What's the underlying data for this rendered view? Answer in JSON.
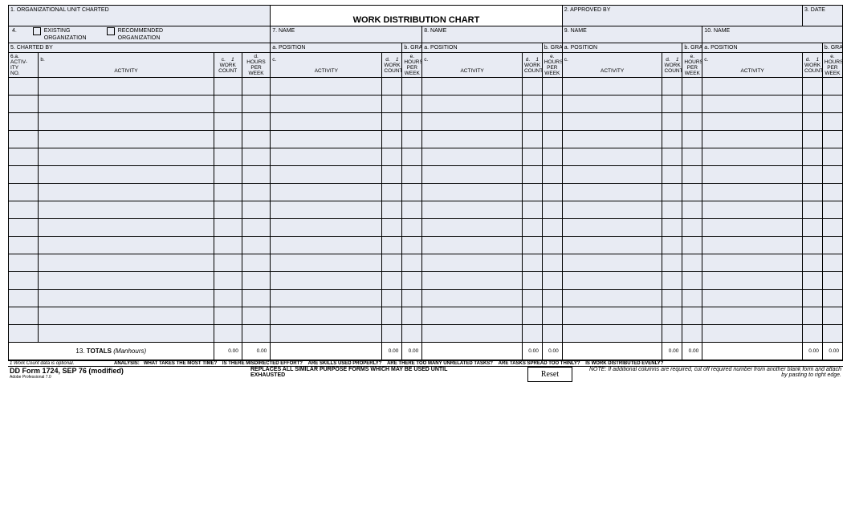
{
  "header": {
    "box1_label": "1.  ORGANIZATIONAL UNIT CHARTED",
    "title": "WORK DISTRIBUTION CHART",
    "box2_label": "2.  APPROVED BY",
    "box3_label": "3.  DATE",
    "box4_num": "4.",
    "box4_opt1": "EXISTING ORGANIZATION",
    "box4_opt2": "RECOMMENDED ORGANIZATION",
    "box5_label": "5.  CHARTED BY",
    "box7_label": "7.  NAME",
    "box8_label": "8.  NAME",
    "box9_label": "9.  NAME",
    "box10_label": "10.  NAME",
    "pos_a": "a.  POSITION",
    "grade_b": "b. GRADE"
  },
  "cols": {
    "c6a_1": "6.a.",
    "c6a_2": "ACTIV-",
    "c6a_3": "ITY",
    "c6a_4": "NO.",
    "b": "b.",
    "activity": "ACTIVITY",
    "c_1": "c.",
    "c_2": "WORK",
    "c_3": "COUNT",
    "c_note": "1",
    "d_1": "d.",
    "d_2": "HOURS",
    "d_3": "PER",
    "d_4": "WEEK",
    "col_c": "c.",
    "col_d1": "d.",
    "col_e1": "e."
  },
  "totals": {
    "label": "13. TOTALS (Manhours)",
    "zero": "0.00"
  },
  "footer": {
    "fn1": "1  Work Count data is optional.",
    "analysis_label": "ANALYSIS:",
    "q1": "WHAT TAKES THE MOST TIME?",
    "q2": "IS THERE MISDIRECTED EFFORT?",
    "q3": "ARE SKILLS USED PROPERLY?",
    "q4": "ARE THERE TOO MANY UNRELATED TASKS?",
    "q5": "ARE TASKS SPREAD TOO THINLY?",
    "q6": "IS WORK DISTRIBUTED EVENLY?",
    "form_id": "DD Form 1724, SEP 76 (modified)",
    "adobe": "Adobe Professional 7.0",
    "replaces1": "REPLACES ALL SIMILAR PURPOSE FORMS WHICH MAY BE USED UNTIL",
    "replaces2": "EXHAUSTED",
    "reset": "Reset",
    "note": "NOTE:  If additional columns are required, cut off required number from another blank form and attach by pasting to right edge."
  }
}
